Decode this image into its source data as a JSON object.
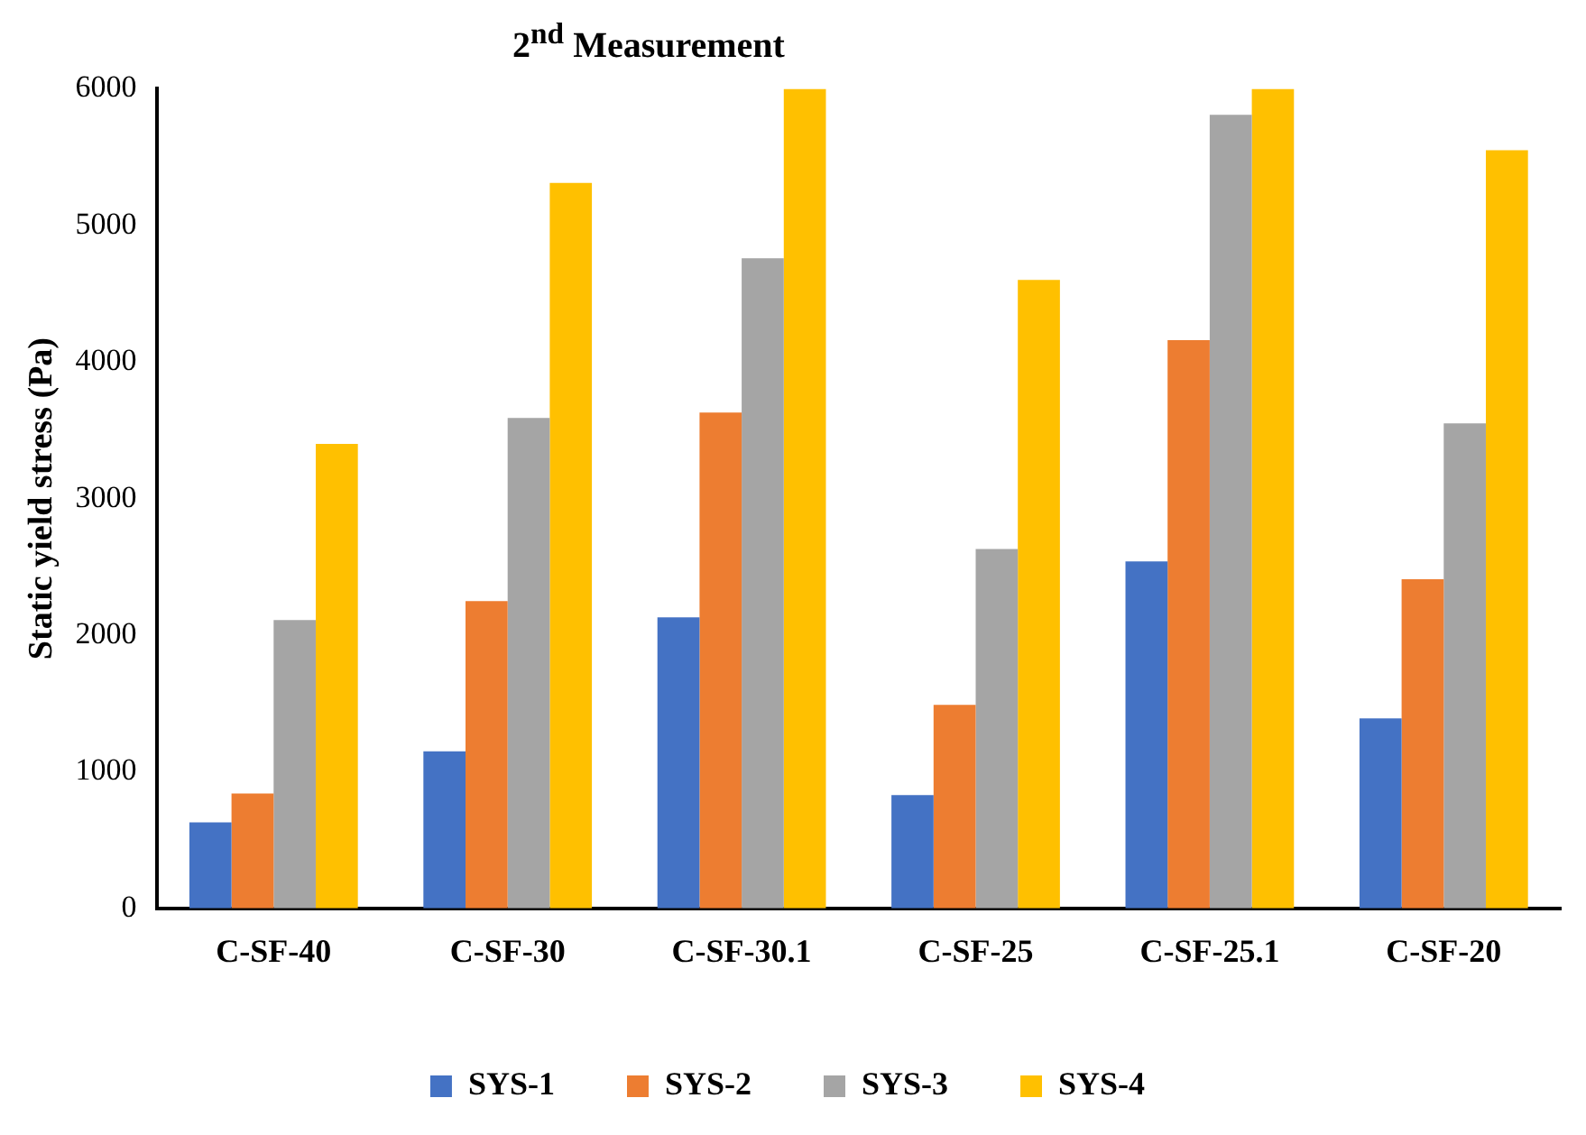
{
  "chart_data": {
    "type": "bar",
    "title": "2$^{nd}$ Measurement",
    "ylabel": "Static yield stress (Pa)",
    "categories": [
      "C-SF-40",
      "C-SF-30",
      "C-SF-30.1",
      "C-SF-25",
      "C-SF-25.1",
      "C-SF-20"
    ],
    "series": [
      {
        "name": "SYS-1",
        "color": "#4472c4",
        "values": [
          630,
          1150,
          2130,
          830,
          2540,
          1390
        ]
      },
      {
        "name": "SYS-2",
        "color": "#ed7d31",
        "values": [
          840,
          2250,
          3630,
          1490,
          4160,
          2410
        ]
      },
      {
        "name": "SYS-3",
        "color": "#a5a5a5",
        "values": [
          2110,
          3590,
          4760,
          2630,
          5810,
          3550
        ]
      },
      {
        "name": "SYS-4",
        "color": "#ffc000",
        "values": [
          3400,
          5310,
          6000,
          4600,
          6000,
          5550
        ]
      }
    ],
    "ylim": [
      0,
      6000
    ],
    "yticks": [
      0,
      1000,
      2000,
      3000,
      4000,
      5000,
      6000
    ],
    "grid": false,
    "legend": "bottom"
  }
}
